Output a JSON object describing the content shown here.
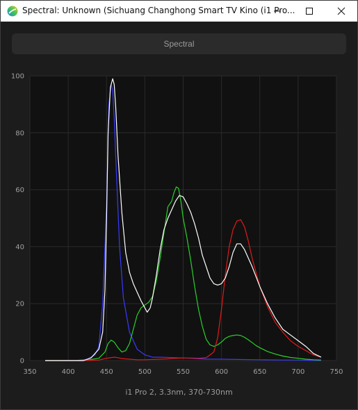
{
  "window": {
    "title": "Spectral: Unknown (Sichuang Changhong Smart TV Kino (i1 Pro...",
    "buttons": [
      "minimize",
      "maximize",
      "close"
    ]
  },
  "tab": {
    "label": "Spectral"
  },
  "colors": {
    "background": "#111111",
    "grid": "#2a2a2a",
    "blue": "#3a3aff",
    "green": "#2bd12b",
    "red": "#e01b1b",
    "white": "#ffffff"
  },
  "chart_data": {
    "type": "line",
    "xlabel": "i1 Pro 2, 3.3nm, 370-730nm",
    "xlim": [
      350,
      750
    ],
    "ylim": [
      0,
      100
    ],
    "x_ticks": [
      350,
      400,
      450,
      500,
      550,
      600,
      650,
      700,
      750
    ],
    "y_ticks": [
      0,
      20,
      40,
      60,
      80,
      100
    ],
    "grid": true,
    "series": [
      {
        "color": "blue",
        "x": [
          370,
          410,
          425,
          435,
          440,
          445,
          450,
          453,
          456,
          458,
          460,
          463,
          467,
          472,
          480,
          490,
          500,
          510,
          520,
          540,
          560,
          580,
          600,
          620,
          650,
          680,
          700,
          730
        ],
        "y": [
          0,
          0,
          0.5,
          2,
          5,
          20,
          55,
          90,
          97,
          95,
          85,
          65,
          40,
          22,
          10,
          4,
          2,
          1.2,
          1.2,
          1,
          0.8,
          0.5,
          0.5,
          0.4,
          0.3,
          0.2,
          0.2,
          0
        ]
      },
      {
        "color": "green",
        "x": [
          370,
          420,
          440,
          448,
          452,
          456,
          460,
          465,
          470,
          475,
          480,
          485,
          490,
          495,
          500,
          505,
          510,
          515,
          520,
          525,
          530,
          535,
          538,
          541,
          544,
          547,
          550,
          555,
          560,
          565,
          570,
          575,
          580,
          585,
          590,
          595,
          600,
          605,
          610,
          615,
          620,
          625,
          630,
          635,
          640,
          645,
          650,
          660,
          670,
          680,
          690,
          700,
          710,
          720,
          730
        ],
        "y": [
          0,
          0,
          0.8,
          3,
          6,
          7.2,
          6.5,
          4.5,
          3,
          3.5,
          6,
          11,
          16,
          18.5,
          19.5,
          20.5,
          22.5,
          28,
          36,
          45,
          54,
          56,
          59,
          61,
          60.5,
          56,
          50,
          43,
          35,
          26,
          18,
          12,
          7.5,
          5.5,
          5,
          5.5,
          6.5,
          7.8,
          8.5,
          8.8,
          9,
          8.8,
          8.2,
          7.3,
          6.3,
          5.3,
          4.5,
          3.2,
          2.3,
          1.6,
          1.1,
          0.8,
          0.5,
          0.3,
          0.2
        ]
      },
      {
        "color": "red",
        "x": [
          370,
          420,
          440,
          445,
          450,
          455,
          460,
          465,
          470,
          480,
          490,
          500,
          510,
          520,
          530,
          540,
          550,
          560,
          570,
          580,
          590,
          595,
          600,
          605,
          610,
          615,
          620,
          625,
          630,
          635,
          640,
          645,
          650,
          660,
          670,
          680,
          690,
          700,
          710,
          720,
          730
        ],
        "y": [
          0,
          0,
          0.2,
          0.5,
          0.8,
          1,
          1.2,
          1,
          0.7,
          0.5,
          0.3,
          0.3,
          0.4,
          0.5,
          0.6,
          0.8,
          0.9,
          0.9,
          0.8,
          1,
          3,
          8,
          18,
          30,
          40,
          46,
          49,
          49.5,
          47,
          42,
          36,
          31,
          26,
          19,
          13.5,
          10,
          7,
          5,
          3.5,
          2,
          1.2
        ]
      },
      {
        "color": "white",
        "x": [
          370,
          420,
          430,
          440,
          445,
          448,
          450,
          452,
          455,
          458,
          460,
          462,
          465,
          470,
          475,
          480,
          485,
          490,
          495,
          500,
          503,
          507,
          510,
          515,
          520,
          525,
          530,
          535,
          540,
          545,
          550,
          555,
          560,
          565,
          570,
          575,
          580,
          585,
          590,
          595,
          600,
          605,
          610,
          615,
          620,
          625,
          630,
          640,
          650,
          660,
          670,
          680,
          690,
          700,
          710,
          720,
          730
        ],
        "y": [
          0,
          0,
          1,
          4,
          10,
          25,
          50,
          80,
          96,
          99,
          97,
          89,
          72,
          52,
          38,
          31,
          27,
          24,
          21,
          18.5,
          17,
          18.5,
          22,
          30,
          39,
          46,
          50,
          53,
          56,
          58,
          57.5,
          55,
          52,
          48,
          43,
          37,
          33,
          29,
          27,
          26.5,
          27,
          29,
          33,
          38,
          41,
          41,
          39,
          33,
          26,
          20,
          15,
          11,
          9,
          7,
          5,
          2.5,
          1.2
        ]
      }
    ]
  }
}
